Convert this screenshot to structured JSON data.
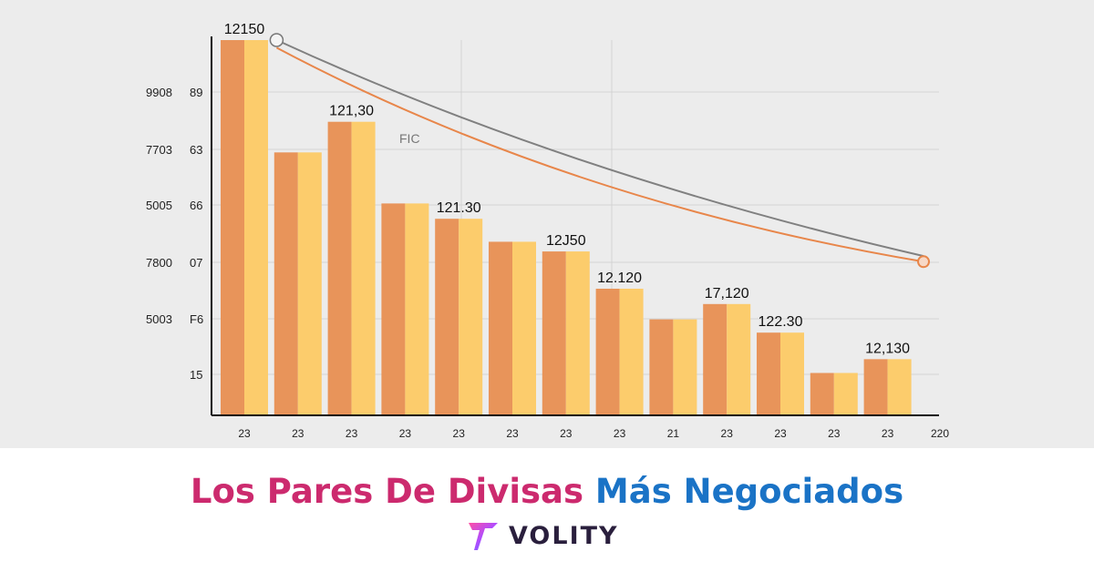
{
  "chart_data": {
    "type": "bar",
    "categories": [
      "23",
      "23",
      "23",
      "23",
      "23",
      "23",
      "23",
      "23",
      "21",
      "23",
      "23",
      "23",
      "23"
    ],
    "x_extra_label": "220",
    "values": [
      12150,
      9950,
      10550,
      8950,
      8650,
      8200,
      8010,
      7280,
      6680,
      6980,
      6420,
      5630,
      5900
    ],
    "value_labels": [
      "12150",
      "",
      "121,30",
      "",
      "121.30",
      "",
      "12J50",
      "12.120",
      "",
      "17,120",
      "122.30",
      "",
      "12,130"
    ],
    "ytick_left": [
      "9908",
      "7703",
      "5005",
      "7800",
      "5003",
      ""
    ],
    "ytick_right": [
      "89",
      "63",
      "66",
      "07",
      "F6",
      "15"
    ],
    "annotation": "FIC",
    "ylim": [
      4800,
      12400
    ],
    "trend_lines": [
      {
        "color": "#e8864a",
        "x_start": 1.5,
        "y_start": 12000,
        "x_end": 13.5,
        "y_end": 7810
      },
      {
        "color": "#808080",
        "x_start": 1.5,
        "y_start": 12150,
        "x_end": 13.5,
        "y_end": 7920
      }
    ],
    "colors": {
      "bar_dark": "#e8945a",
      "bar_light": "#fccc6c",
      "line_orange": "#e8864a",
      "line_gray": "#808080"
    },
    "grid": true
  },
  "headline": {
    "part1": "Los Pares De Divisas",
    "part2": "Más Negociados"
  },
  "brand": {
    "name": "VOLITY"
  }
}
